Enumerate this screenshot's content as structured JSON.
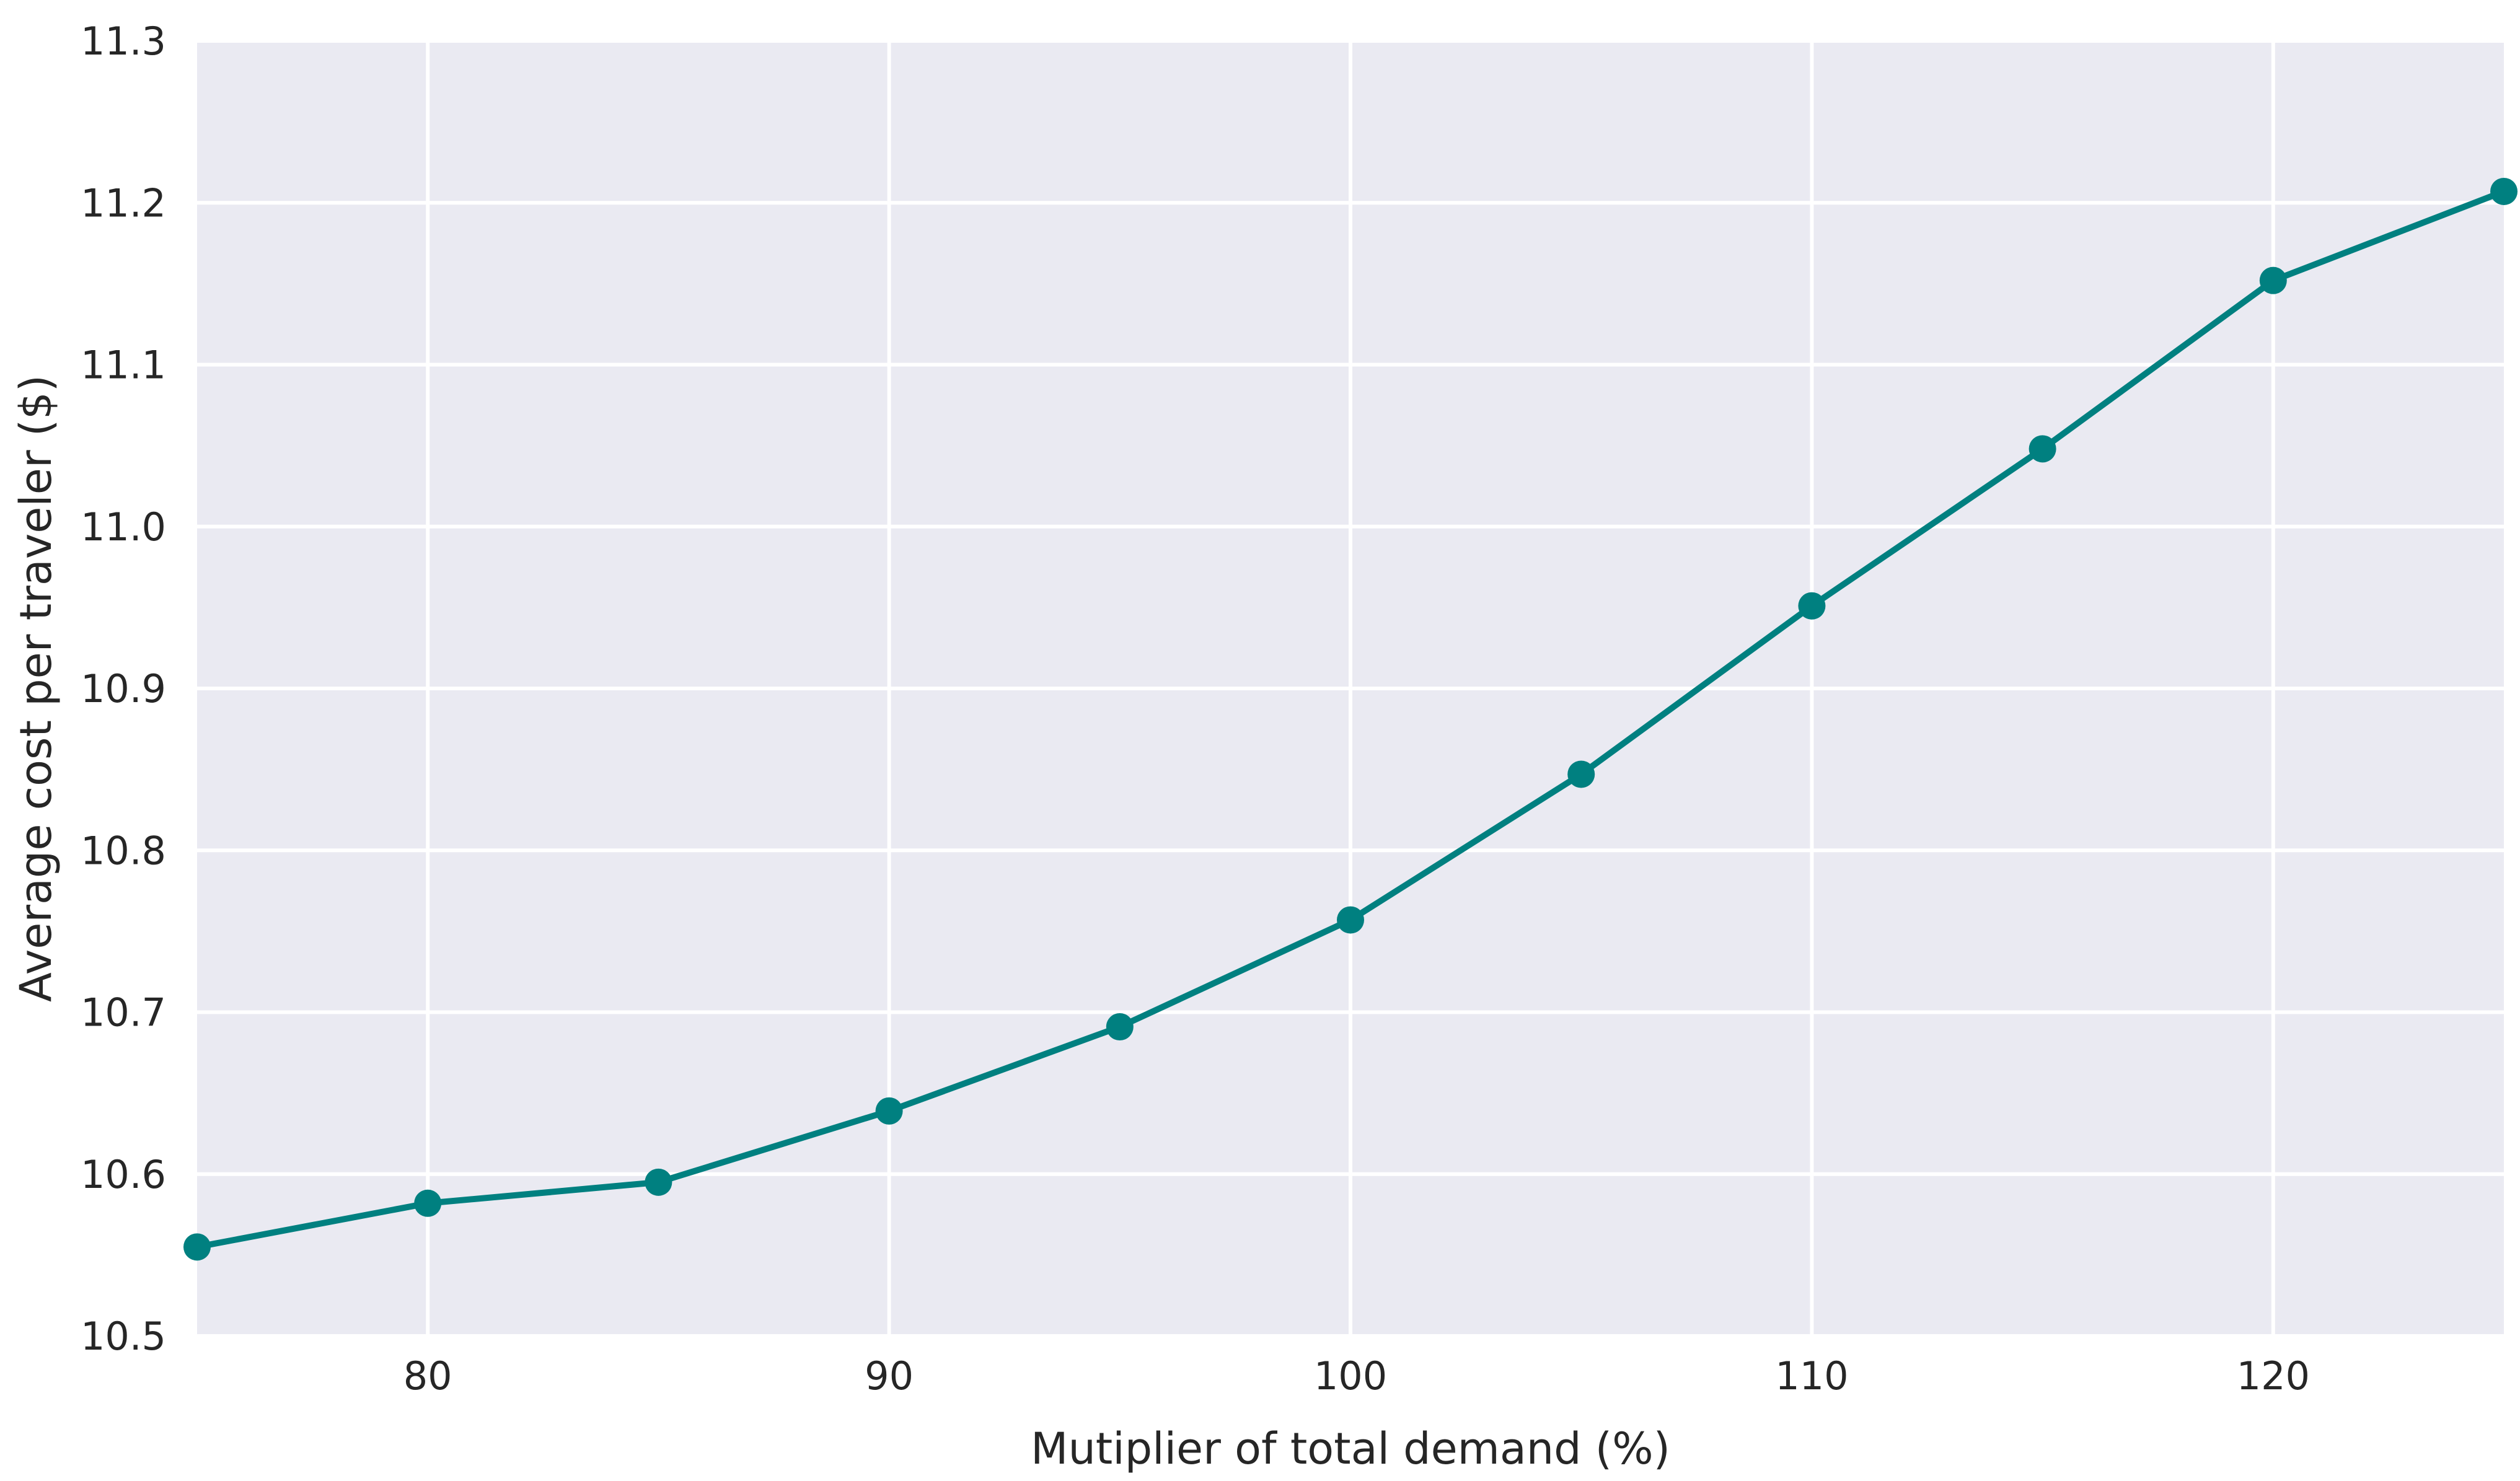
{
  "chart_data": {
    "type": "line",
    "title": "",
    "xlabel": "Mutiplier of total demand (%)",
    "ylabel": "Average cost per traveler ($)",
    "xlim": [
      75,
      125
    ],
    "ylim": [
      10.5,
      11.3
    ],
    "xticks": [
      80,
      90,
      100,
      110,
      120
    ],
    "xtick_labels": [
      "80",
      "90",
      "100",
      "110",
      "120"
    ],
    "yticks": [
      10.5,
      10.6,
      10.7,
      10.8,
      10.9,
      11.0,
      11.1,
      11.2,
      11.3
    ],
    "ytick_labels": [
      "10.5",
      "10.6",
      "10.7",
      "10.8",
      "10.9",
      "11.0",
      "11.1",
      "11.2",
      "11.3"
    ],
    "grid": true,
    "legend": "none",
    "colors": {
      "plot_background": "#EAEAF2",
      "grid": "#FFFFFF",
      "series": "#008080",
      "text": "#262626"
    },
    "series": [
      {
        "x": [
          75,
          80,
          85,
          90,
          95,
          100,
          105,
          110,
          115,
          120,
          125
        ],
        "values": [
          10.555,
          10.582,
          10.595,
          10.639,
          10.691,
          10.757,
          10.847,
          10.951,
          11.048,
          11.152,
          11.207
        ]
      }
    ]
  }
}
